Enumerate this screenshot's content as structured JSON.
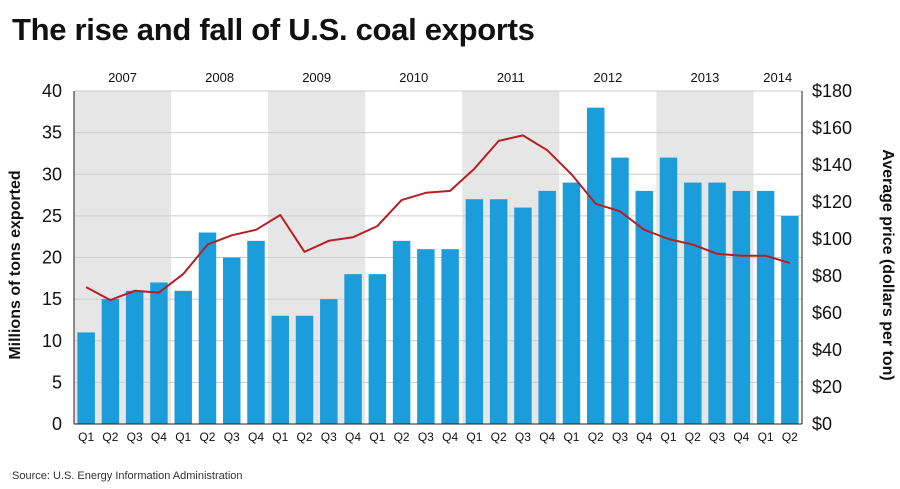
{
  "title": "The rise and fall of U.S. coal exports",
  "source": "Source: U.S. Energy Information Administration",
  "colors": {
    "bar": "#1b9ddb",
    "line": "#b51f24",
    "band": "#e6e6e6",
    "grid": "#cccccc"
  },
  "chart_data": {
    "type": "bar",
    "title": "The rise and fall of U.S. coal exports",
    "xlabel": "",
    "ylabel": "Millions of tons exported",
    "y2label": "Average price (dollars per ton)",
    "ylim": [
      0,
      40
    ],
    "y2lim": [
      0,
      180
    ],
    "yticks": [
      "0",
      "5",
      "10",
      "15",
      "20",
      "25",
      "30",
      "35",
      "40"
    ],
    "y2ticks": [
      "$0",
      "$20",
      "$40",
      "$60",
      "$80",
      "$100",
      "$120",
      "$140",
      "$160",
      "$180"
    ],
    "years": [
      {
        "label": "2007",
        "quarters": 4,
        "shaded": true
      },
      {
        "label": "2008",
        "quarters": 4,
        "shaded": false
      },
      {
        "label": "2009",
        "quarters": 4,
        "shaded": true
      },
      {
        "label": "2010",
        "quarters": 4,
        "shaded": false
      },
      {
        "label": "2011",
        "quarters": 4,
        "shaded": true
      },
      {
        "label": "2012",
        "quarters": 4,
        "shaded": false
      },
      {
        "label": "2013",
        "quarters": 4,
        "shaded": true
      },
      {
        "label": "2014",
        "quarters": 2,
        "shaded": false
      }
    ],
    "categories": [
      "Q1",
      "Q2",
      "Q3",
      "Q4",
      "Q1",
      "Q2",
      "Q3",
      "Q4",
      "Q1",
      "Q2",
      "Q3",
      "Q4",
      "Q1",
      "Q2",
      "Q3",
      "Q4",
      "Q1",
      "Q2",
      "Q3",
      "Q4",
      "Q1",
      "Q2",
      "Q3",
      "Q4",
      "Q1",
      "Q2",
      "Q3",
      "Q4",
      "Q1",
      "Q2"
    ],
    "series": [
      {
        "name": "Millions of tons exported",
        "axis": "left",
        "type": "bar",
        "values": [
          11,
          15,
          16,
          17,
          16,
          23,
          20,
          22,
          13,
          13,
          15,
          18,
          18,
          22,
          21,
          21,
          27,
          27,
          26,
          28,
          29,
          38,
          32,
          28,
          32,
          29,
          29,
          28,
          28,
          25
        ]
      },
      {
        "name": "Average price (dollars per ton)",
        "axis": "right",
        "type": "line",
        "values": [
          74,
          67,
          72,
          71,
          81,
          97,
          102,
          105,
          113,
          93,
          99,
          101,
          107,
          121,
          125,
          126,
          138,
          153,
          156,
          148,
          135,
          119,
          115,
          105,
          100,
          97,
          92,
          91,
          91,
          87
        ]
      }
    ]
  }
}
